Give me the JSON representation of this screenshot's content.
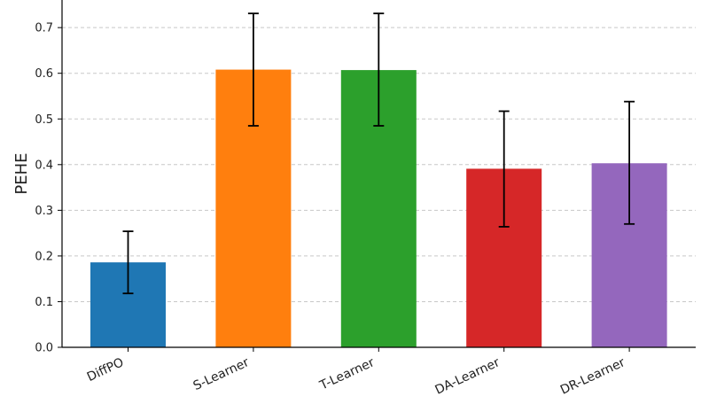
{
  "chart_data": {
    "type": "bar",
    "categories": [
      "DiffPO",
      "S-Learner",
      "T-Learner",
      "DA-Learner",
      "DR-Learner"
    ],
    "values": [
      0.186,
      0.608,
      0.607,
      0.391,
      0.403
    ],
    "error_low": [
      0.118,
      0.485,
      0.485,
      0.264,
      0.27
    ],
    "error_high": [
      0.254,
      0.731,
      0.731,
      0.517,
      0.538
    ],
    "colors": [
      "#1f77b4",
      "#ff7f0e",
      "#2ca02c",
      "#d62728",
      "#9467bd"
    ],
    "ylabel": "PEHE",
    "xlabel": "",
    "ylim": [
      0,
      0.76
    ],
    "yticks": [
      "0.0",
      "0.1",
      "0.2",
      "0.3",
      "0.4",
      "0.5",
      "0.6",
      "0.7"
    ],
    "grid": "y, dashed"
  }
}
